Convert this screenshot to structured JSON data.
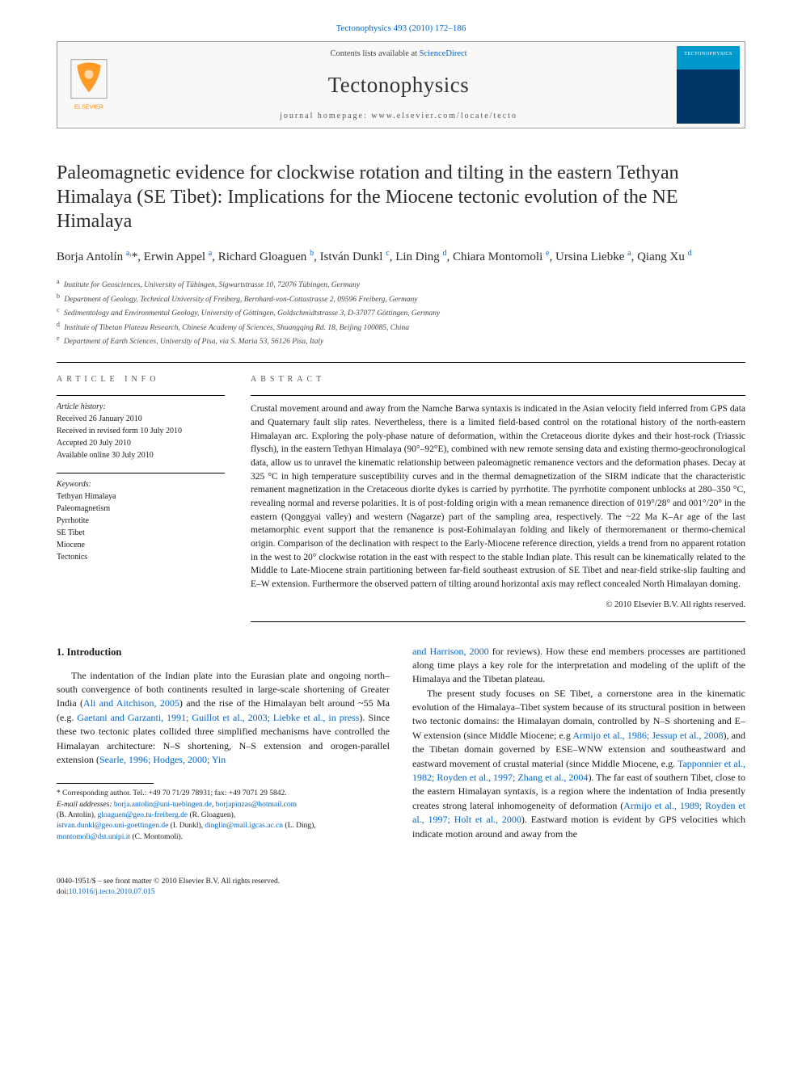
{
  "header": {
    "journal_ref_text": "Tectonophysics 493 (2010) 172–186",
    "contents_prefix": "Contents lists available at ",
    "contents_link": "ScienceDirect",
    "journal_name": "Tectonophysics",
    "homepage_line": "journal homepage: www.elsevier.com/locate/tecto",
    "cover_label": "TECTONOPHYSICS"
  },
  "article": {
    "title": "Paleomagnetic evidence for clockwise rotation and tilting in the eastern Tethyan Himalaya (SE Tibet): Implications for the Miocene tectonic evolution of the NE Himalaya",
    "authors_html": "Borja Antolín <sup>a,</sup>*, Erwin Appel <sup>a</sup>, Richard Gloaguen <sup>b</sup>, István Dunkl <sup>c</sup>, Lin Ding <sup>d</sup>, Chiara Montomoli <sup>e</sup>, Ursina Liebke <sup>a</sup>, Qiang Xu <sup>d</sup>",
    "affiliations": [
      {
        "sup": "a",
        "text": "Institute for Geosciences, University of Tübingen, Sigwartstrasse 10, 72076 Tübingen, Germany"
      },
      {
        "sup": "b",
        "text": "Department of Geology, Technical University of Freiberg, Bernhard-von-Cottastrasse 2, 09596 Freiberg, Germany"
      },
      {
        "sup": "c",
        "text": "Sedimentology and Environmental Geology, University of Göttingen, Goldschmidtstrasse 3, D-37077 Göttingen, Germany"
      },
      {
        "sup": "d",
        "text": "Institute of Tibetan Plateau Research, Chinese Academy of Sciences, Shuangqing Rd. 18, Beijing 100085, China"
      },
      {
        "sup": "e",
        "text": "Department of Earth Sciences, University of Pisa, via S. Maria 53, 56126 Pisa, Italy"
      }
    ]
  },
  "meta": {
    "info_label": "ARTICLE INFO",
    "abstract_label": "ABSTRACT",
    "history_hdr": "Article history:",
    "history_lines": [
      "Received 26 January 2010",
      "Received in revised form 10 July 2010",
      "Accepted 20 July 2010",
      "Available online 30 July 2010"
    ],
    "keywords_hdr": "Keywords:",
    "keywords": [
      "Tethyan Himalaya",
      "Paleomagnetism",
      "Pyrrhotite",
      "SE Tibet",
      "Miocene",
      "Tectonics"
    ]
  },
  "abstract": {
    "text": "Crustal movement around and away from the Namche Barwa syntaxis is indicated in the Asian velocity field inferred from GPS data and Quaternary fault slip rates. Nevertheless, there is a limited field-based control on the rotational history of the north-eastern Himalayan arc. Exploring the poly-phase nature of deformation, within the Cretaceous diorite dykes and their host-rock (Triassic flysch), in the eastern Tethyan Himalaya (90°–92°E), combined with new remote sensing data and existing thermo-geochronological data, allow us to unravel the kinematic relationship between paleomagnetic remanence vectors and the deformation phases. Decay at 325 °C in high temperature susceptibility curves and in the thermal demagnetization of the SIRM indicate that the characteristic remanent magnetization in the Cretaceous diorite dykes is carried by pyrrhotite. The pyrrhotite component unblocks at 280–350 °C, revealing normal and reverse polarities. It is of post-folding origin with a mean remanence direction of 019°/28° and 001°/20° in the eastern (Qonggyai valley) and western (Nagarze) part of the sampling area, respectively. The ~22 Ma K–Ar age of the last metamorphic event support that the remanence is post-Eohimalayan folding and likely of thermoremanent or thermo-chemical origin. Comparison of the declination with respect to the Early-Miocene reference direction, yields a trend from no apparent rotation in the west to 20° clockwise rotation in the east with respect to the stable Indian plate. This result can be kinematically related to the Middle to Late-Miocene strain partitioning between far-field southeast extrusion of SE Tibet and near-field strike-slip faulting and E–W extension. Furthermore the observed pattern of tilting around horizontal axis may reflect concealed North Himalayan doming.",
    "copyright": "© 2010 Elsevier B.V. All rights reserved."
  },
  "intro": {
    "heading": "1. Introduction",
    "col1_p1_pre": "The indentation of the Indian plate into the Eurasian plate and ongoing north–south convergence of both continents resulted in large-scale shortening of Greater India (",
    "col1_link1": "Ali and Aitchison, 2005",
    "col1_p1_mid1": ") and the rise of the Himalayan belt around ~55 Ma (e.g. ",
    "col1_link2": "Gaetani and Garzanti, 1991; Guillot et al., 2003; Liebke et al., in press",
    "col1_p1_mid2": "). Since these two tectonic plates collided three simplified mechanisms have controlled the Himalayan architecture: N–S shortening, N–S extension and orogen-parallel extension (",
    "col1_link3": "Searle, 1996; Hodges, 2000; Yin",
    "col2_link_cont": "and Harrison, 2000",
    "col2_p1_post": " for reviews). How these end members processes are partitioned along time plays a key role for the interpretation and modeling of the uplift of the Himalaya and the Tibetan plateau.",
    "col2_p2_pre": "The present study focuses on SE Tibet, a cornerstone area in the kinematic evolution of the Himalaya–Tibet system because of its structural position in between two tectonic domains: the Himalayan domain, controlled by N–S shortening and E–W extension (since Middle Miocene; e.g ",
    "col2_link4": "Armijo et al., 1986; Jessup et al., 2008",
    "col2_p2_mid1": "), and the Tibetan domain governed by ESE–WNW extension and southeastward and eastward movement of crustal material (since Middle Miocene, e.g. ",
    "col2_link5": "Tapponnier et al., 1982; Royden et al., 1997; Zhang et al., 2004",
    "col2_p2_mid2": "). The far east of southern Tibet, close to the eastern Himalayan syntaxis, is a region where the indentation of India presently creates strong lateral inhomogeneity of deformation (",
    "col2_link6": "Armijo et al., 1989; Royden et al., 1997; Holt et al., 2000",
    "col2_p2_post": "). Eastward motion is evident by GPS velocities which indicate motion around and away from the"
  },
  "footnotes": {
    "corr_line": "* Corresponding author. Tel.: +49 70 71/29 78931; fax: +49 7071 29 5842.",
    "email_label": "E-mail addresses: ",
    "emails": [
      {
        "addr": "borja.antolin@uni-tuebingen.de",
        "sep": ", "
      },
      {
        "addr": "borjapinzas@hotmail.com",
        "sep": ""
      }
    ],
    "email_tail1": " (B. Antolín), ",
    "email2": "gloaguen@geo.tu-freiberg.de",
    "email_tail2": " (R. Gloaguen),",
    "email3": "istvan.dunkl@geo.uni-goettingen.de",
    "email_tail3": " (I. Dunkl), ",
    "email4": "dinglin@mail.igcas.ac.cn",
    "email_tail4": " (L. Ding),",
    "email5": "montomoli@dst.unipi.it",
    "email_tail5": " (C. Montomoli)."
  },
  "footer": {
    "front_matter": "0040-1951/$ – see front matter © 2010 Elsevier B.V. All rights reserved.",
    "doi_prefix": "doi:",
    "doi": "10.1016/j.tecto.2010.07.015"
  },
  "colors": {
    "link": "#0066cc",
    "text": "#1a1a1a",
    "rule": "#000000",
    "elsevier_orange": "#ff8a00",
    "elsevier_grey": "#9a9a9a"
  }
}
